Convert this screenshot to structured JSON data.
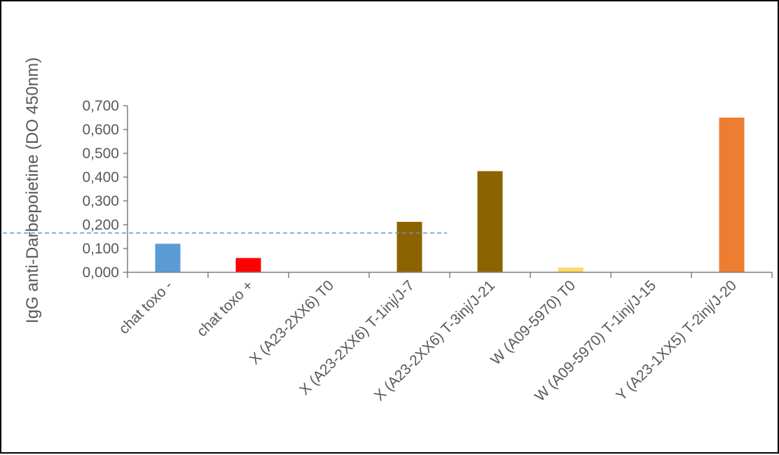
{
  "chart_data": {
    "type": "bar",
    "title": "",
    "xlabel": "",
    "ylabel": "IgG anti-Darbepoietine (DO 450nm)",
    "ylim": [
      0,
      0.7
    ],
    "yticks": [
      "0,000",
      "0,100",
      "0,200",
      "0,300",
      "0,400",
      "0,500",
      "0,600",
      "0,700"
    ],
    "categories": [
      "chat toxo -",
      "chat toxo +",
      "X (A23-2XX6) T0",
      "X (A23-2XX6) T-1inj/J-7",
      "X (A23-2XX6) T-3inj/J-21",
      "W (A09-5970) T0",
      "W (A09-5970) T-1inj/J-15",
      "Y (A23-1XX5) T-2inj/J-20"
    ],
    "values": [
      0.12,
      0.06,
      0.0,
      0.212,
      0.425,
      0.02,
      0.0,
      0.65
    ],
    "colors": [
      "#5b9bd5",
      "#ff0000",
      "#8b6400",
      "#8b6400",
      "#8b6400",
      "#ffd966",
      "#8b6400",
      "#ed7d31"
    ],
    "threshold": {
      "value": 0.165,
      "color": "#5b9bd5",
      "style": "dashed"
    },
    "grid": false,
    "legend": "none"
  }
}
